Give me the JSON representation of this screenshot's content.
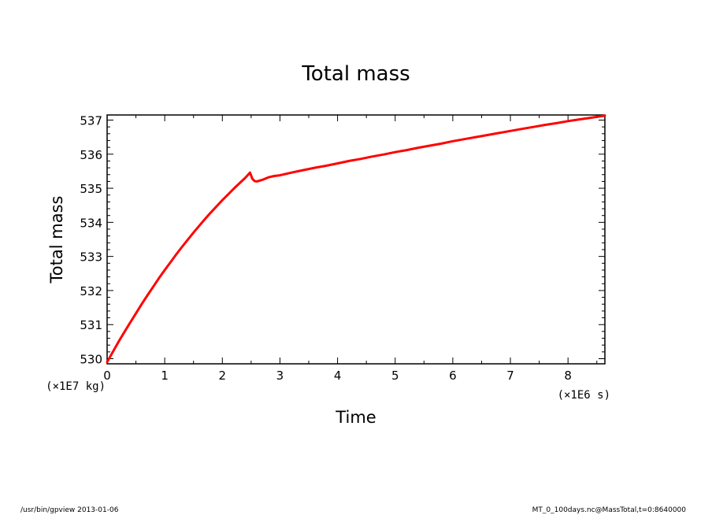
{
  "chart_data": {
    "type": "line",
    "title": "Total mass",
    "xlabel": "Time",
    "ylabel": "Total mass",
    "x_unit": "(×1E6 s)",
    "y_unit": "(×1E7 kg)",
    "xlim": [
      0,
      8.64
    ],
    "ylim": [
      529.85,
      537.15
    ],
    "x_ticks": [
      "0",
      "1",
      "2",
      "3",
      "4",
      "5",
      "6",
      "7",
      "8"
    ],
    "y_ticks": [
      "530",
      "531",
      "532",
      "533",
      "534",
      "535",
      "536",
      "537"
    ],
    "grid": false,
    "series": [
      {
        "color": "#ff0000",
        "x": [
          0,
          0.1,
          0.2,
          0.3,
          0.4,
          0.5,
          0.6,
          0.7,
          0.8,
          0.9,
          1.0,
          1.1,
          1.2,
          1.3,
          1.4,
          1.5,
          1.6,
          1.7,
          1.8,
          1.9,
          2.0,
          2.1,
          2.2,
          2.3,
          2.4,
          2.48,
          2.52,
          2.56,
          2.6,
          2.7,
          2.8,
          2.9,
          3.0,
          3.2,
          3.4,
          3.6,
          3.8,
          4.0,
          4.2,
          4.4,
          4.6,
          4.8,
          5.0,
          5.2,
          5.4,
          5.6,
          5.8,
          6.0,
          6.2,
          6.4,
          6.6,
          6.8,
          7.0,
          7.2,
          7.4,
          7.6,
          7.8,
          8.0,
          8.2,
          8.4,
          8.64
        ],
        "y": [
          529.9,
          530.2,
          530.5,
          530.78,
          531.06,
          531.33,
          531.6,
          531.86,
          532.11,
          532.36,
          532.6,
          532.83,
          533.06,
          533.28,
          533.49,
          533.7,
          533.9,
          534.1,
          534.29,
          534.47,
          534.65,
          534.82,
          534.99,
          535.15,
          535.31,
          535.46,
          535.28,
          535.21,
          535.2,
          535.25,
          535.32,
          535.36,
          535.38,
          535.46,
          535.53,
          535.6,
          535.66,
          535.73,
          535.8,
          535.86,
          535.93,
          535.99,
          536.06,
          536.12,
          536.19,
          536.25,
          536.31,
          536.38,
          536.44,
          536.5,
          536.56,
          536.62,
          536.68,
          536.74,
          536.8,
          536.86,
          536.91,
          536.97,
          537.02,
          537.07,
          537.13
        ]
      }
    ]
  },
  "footer": {
    "left": "/usr/bin/gpview   2013-01-06",
    "right": "MT_0_100days.nc@MassTotal,t=0:8640000"
  }
}
